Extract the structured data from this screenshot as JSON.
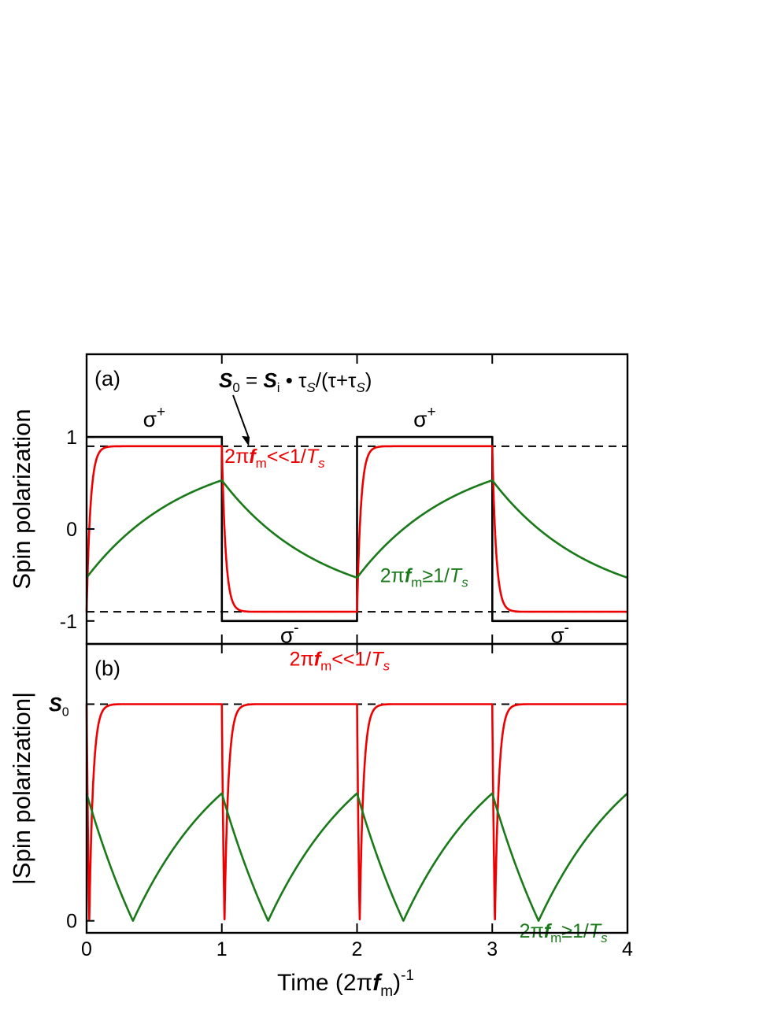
{
  "chart_data": [
    {
      "panel_label": "(a)",
      "type": "line",
      "ylabel": "Spin polarization",
      "xlim": [
        0,
        4
      ],
      "ylim": [
        -1.25,
        1.9
      ],
      "y_ticks": [
        "1",
        "0",
        "-1"
      ],
      "y_tick_values": [
        1,
        0,
        -1
      ],
      "dashed_levels": [
        0.9,
        -0.9
      ],
      "annotation": {
        "S": "S",
        "S_sub": "0",
        "eq": " = ",
        "Si": "S",
        "Si_sub": "i",
        "dot": " • ",
        "tau": "τ",
        "tau_sub": "S",
        "slash": "/(τ+",
        "tau2": "τ",
        "tau2_sub": "S",
        "close": ")",
        "arrow_to": [
          1.2,
          0.9
        ]
      },
      "sigma_labels": [
        {
          "text": "σ",
          "sup": "+",
          "x": 0.5,
          "y": 1.2
        },
        {
          "text": "σ",
          "sup": "+",
          "x": 2.5,
          "y": 1.2
        },
        {
          "text": "σ",
          "sup": "-",
          "x": 1.5,
          "y": -1.15
        },
        {
          "text": "σ",
          "sup": "-",
          "x": 3.5,
          "y": -1.15
        }
      ],
      "series": [
        {
          "role": "excitation",
          "color": "#000000",
          "kind": "square",
          "high": 1,
          "low": -1,
          "period": 2
        },
        {
          "role": "fast",
          "color": "#ee0000",
          "kind": "fast_relax",
          "amplitude": 0.9,
          "rate": 35,
          "label": {
            "prefix": "2π",
            "f": "f",
            "f_sub": "m",
            "rel": "<<1/",
            "T": "T",
            "T_sub": "s",
            "x": 1.02,
            "y": 0.72
          }
        },
        {
          "role": "slow",
          "color": "#1a7a1a",
          "kind": "slow_relax",
          "amplitude": 0.9,
          "rate": 1.35,
          "label": {
            "prefix": "2π",
            "f": "f",
            "f_sub": "m",
            "rel": "≥1/",
            "T": "T",
            "T_sub": "s",
            "x": 2.17,
            "y": -0.58
          }
        }
      ]
    },
    {
      "panel_label": "(b)",
      "type": "line",
      "ylabel": "|Spin polarization|",
      "xlabel": {
        "main": "Time (2π",
        "f": "f",
        "f_sub": "m",
        "close": ")",
        "sup": "-1"
      },
      "xlim": [
        0,
        4
      ],
      "x_ticks": [
        "0",
        "1",
        "2",
        "3",
        "4"
      ],
      "x_tick_values": [
        0,
        1,
        2,
        3,
        4
      ],
      "ylim": [
        -0.05,
        1.15
      ],
      "y_tick_labels": [
        {
          "text": "S",
          "sub": "0",
          "value": 0.9
        },
        {
          "text": "0",
          "value": 0
        }
      ],
      "dashed_levels": [
        0.9
      ],
      "series": [
        {
          "role": "fast",
          "color": "#ee0000",
          "kind": "abs_fast",
          "amplitude": 0.9,
          "rate": 35,
          "label": {
            "prefix": "2π",
            "f": "f",
            "f_sub": "m",
            "rel": "<<1/",
            "T": "T",
            "T_sub": "s",
            "x": 1.5,
            "y": 1.06
          }
        },
        {
          "role": "slow",
          "color": "#1a7a1a",
          "kind": "abs_slow",
          "amplitude": 0.9,
          "rate": 1.35,
          "label": {
            "prefix": "2π",
            "f": "f",
            "f_sub": "m",
            "rel": "≥1/",
            "T": "T",
            "T_sub": "s",
            "x": 3.2,
            "y": -0.07
          }
        }
      ]
    }
  ]
}
